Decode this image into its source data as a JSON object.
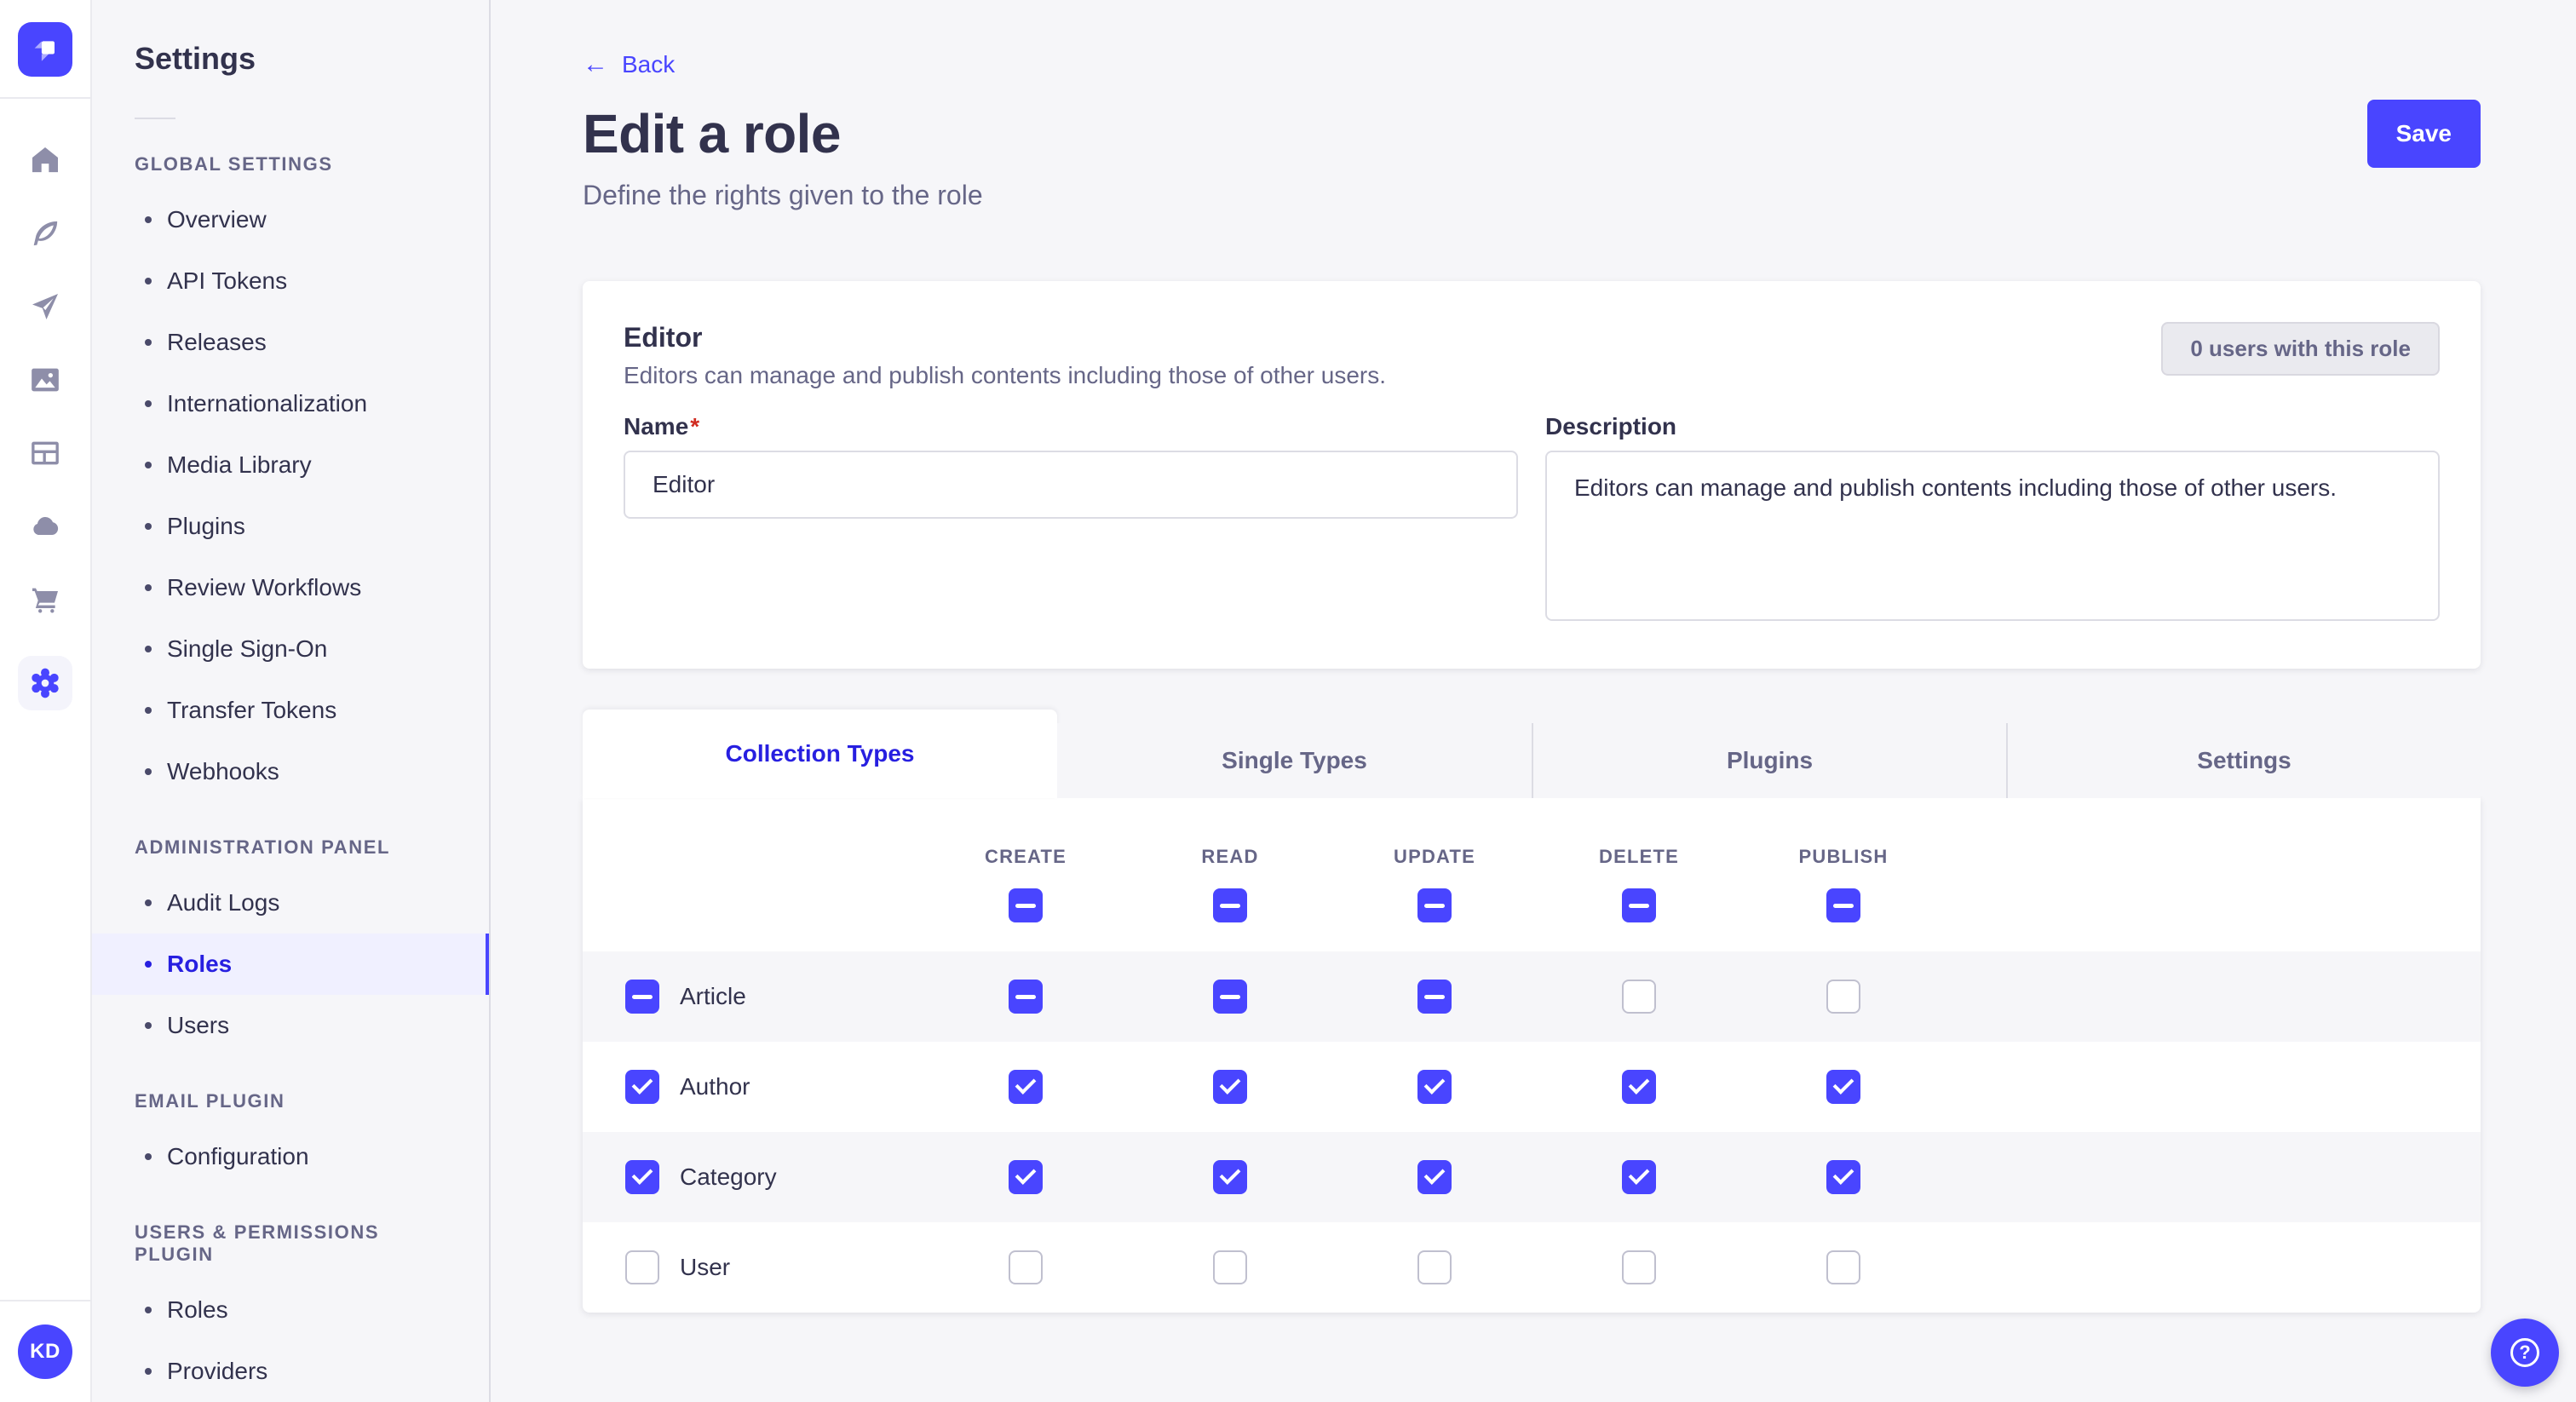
{
  "sidebar_title": "Settings",
  "rail": {
    "icons": [
      "home",
      "content-manager",
      "releases",
      "media-library",
      "content-type-builder",
      "deploy",
      "marketplace",
      "settings"
    ],
    "active_icon": "settings"
  },
  "sidebar": {
    "sections": [
      {
        "label": "GLOBAL SETTINGS",
        "items": [
          {
            "label": "Overview",
            "active": false
          },
          {
            "label": "API Tokens",
            "active": false
          },
          {
            "label": "Releases",
            "active": false
          },
          {
            "label": "Internationalization",
            "active": false
          },
          {
            "label": "Media Library",
            "active": false
          },
          {
            "label": "Plugins",
            "active": false
          },
          {
            "label": "Review Workflows",
            "active": false
          },
          {
            "label": "Single Sign-On",
            "active": false
          },
          {
            "label": "Transfer Tokens",
            "active": false
          },
          {
            "label": "Webhooks",
            "active": false
          }
        ]
      },
      {
        "label": "ADMINISTRATION PANEL",
        "items": [
          {
            "label": "Audit Logs",
            "active": false
          },
          {
            "label": "Roles",
            "active": true
          },
          {
            "label": "Users",
            "active": false
          }
        ]
      },
      {
        "label": "EMAIL PLUGIN",
        "items": [
          {
            "label": "Configuration",
            "active": false
          }
        ]
      },
      {
        "label": "USERS & PERMISSIONS PLUGIN",
        "items": [
          {
            "label": "Roles",
            "active": false
          },
          {
            "label": "Providers",
            "active": false
          }
        ]
      }
    ]
  },
  "header": {
    "back_label": "Back",
    "back_arrow": "←",
    "title": "Edit a role",
    "subtitle": "Define the rights given to the role",
    "save_label": "Save"
  },
  "role_card": {
    "title": "Editor",
    "description": "Editors can manage and publish contents including those of other users.",
    "users_badge": "0 users with this role",
    "name_label": "Name",
    "required_mark": "*",
    "name_value": "Editor",
    "description_label": "Description",
    "description_value": "Editors can manage and publish contents including those of other users."
  },
  "permissions": {
    "tabs": [
      {
        "label": "Collection Types",
        "active": true
      },
      {
        "label": "Single Types",
        "active": false
      },
      {
        "label": "Plugins",
        "active": false
      },
      {
        "label": "Settings",
        "active": false
      }
    ],
    "columns": [
      "CREATE",
      "READ",
      "UPDATE",
      "DELETE",
      "PUBLISH"
    ],
    "select_all_states": [
      "indeterminate",
      "indeterminate",
      "indeterminate",
      "indeterminate",
      "indeterminate"
    ],
    "rows": [
      {
        "label": "Article",
        "row_state": "indeterminate",
        "cells": [
          "indeterminate",
          "indeterminate",
          "indeterminate",
          "unchecked",
          "unchecked"
        ]
      },
      {
        "label": "Author",
        "row_state": "checked",
        "cells": [
          "checked",
          "checked",
          "checked",
          "checked",
          "checked"
        ]
      },
      {
        "label": "Category",
        "row_state": "checked",
        "cells": [
          "checked",
          "checked",
          "checked",
          "checked",
          "checked"
        ]
      },
      {
        "label": "User",
        "row_state": "unchecked",
        "cells": [
          "unchecked",
          "unchecked",
          "unchecked",
          "unchecked",
          "unchecked"
        ]
      }
    ]
  },
  "user": {
    "initials": "KD"
  },
  "help": {
    "glyph": "?"
  },
  "colors": {
    "primary": "#4945ff",
    "primary_active_text": "#271fe0",
    "active_item_bg": "#f0f0ff",
    "page_bg": "#f6f6f9",
    "card_border": "#eaeaef",
    "input_border": "#dcdce4",
    "text": "#32324d",
    "muted_text": "#666687",
    "rail_icon": "#8e8ea9",
    "required": "#d02b20"
  }
}
